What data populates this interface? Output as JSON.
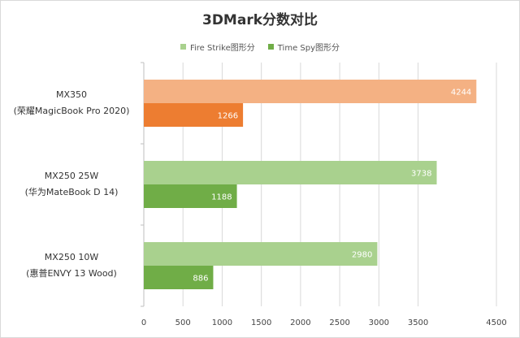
{
  "chart_data": {
    "type": "bar",
    "orientation": "horizontal",
    "title": "3DMark分数对比",
    "legend_position": "top",
    "grid": true,
    "xlim": [
      0,
      4500
    ],
    "x_ticks": [
      0,
      500,
      1000,
      1500,
      2000,
      2500,
      3000,
      3500,
      4500
    ],
    "categories": [
      {
        "line1": "MX350",
        "line2": "(荣耀MagicBook  Pro 2020)"
      },
      {
        "line1": "MX250 25W",
        "line2": "(华为MateBook  D 14)"
      },
      {
        "line1": "MX250 10W",
        "line2": "(惠普ENVY 13 Wood)"
      }
    ],
    "series": [
      {
        "name": "Fire Strike图形分",
        "values": [
          4244,
          3738,
          2980
        ]
      },
      {
        "name": "Time Spy图形分",
        "values": [
          1266,
          1188,
          886
        ]
      }
    ],
    "colors": {
      "fire_strike": "#a9d18e",
      "time_spy": "#70ad47",
      "mx350_fire_strike": "#f4b183",
      "mx350_time_spy": "#ed7d31",
      "grid": "#d9d9d9",
      "axis": "#bfbfbf"
    }
  }
}
